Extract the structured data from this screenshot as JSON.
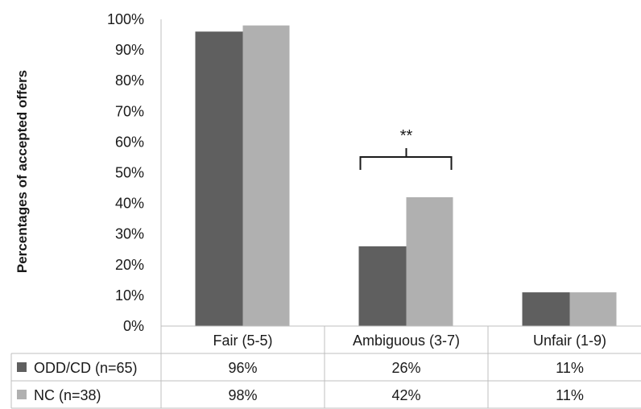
{
  "chart_data": {
    "type": "bar",
    "ylabel": "Percentages of accepted offers",
    "yticks": [
      "0%",
      "10%",
      "20%",
      "30%",
      "40%",
      "50%",
      "60%",
      "70%",
      "80%",
      "90%",
      "100%"
    ],
    "ylim": [
      0,
      100
    ],
    "grid": false,
    "categories": [
      "Fair (5-5)",
      "Ambiguous (3-7)",
      "Unfair (1-9)"
    ],
    "series": [
      {
        "name": "ODD/CD (n=65)",
        "values": [
          96,
          26,
          11
        ],
        "labels": [
          "96%",
          "26%",
          "11%"
        ],
        "color": "#5f5f5f"
      },
      {
        "name": "NC (n=38)",
        "values": [
          98,
          42,
          11
        ],
        "labels": [
          "98%",
          "42%",
          "11%"
        ],
        "color": "#b0b0b0"
      }
    ],
    "annotation": {
      "text": "**",
      "category_index": 1
    }
  }
}
